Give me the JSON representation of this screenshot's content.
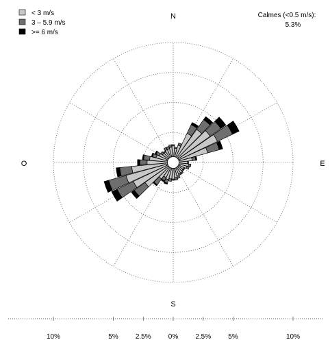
{
  "chart_data": {
    "type": "windrose",
    "direction_labels": {
      "N": "N",
      "E": "E",
      "S": "S",
      "W": "O"
    },
    "legend": [
      {
        "label": "< 3 m/s",
        "color": "#c8c8c8"
      },
      {
        "label": "3 – 5.9 m/s",
        "color": "#6e6e6e"
      },
      {
        "label": ">= 6 m/s",
        "color": "#000000"
      }
    ],
    "calm": {
      "label": "Calmes (<0.5 m/s):",
      "value": "5.3%"
    },
    "circle_percents": [
      2.5,
      5,
      7.5,
      10
    ],
    "scale_ticks": [
      {
        "label": "10%",
        "value": -10
      },
      {
        "label": "5%",
        "value": -5
      },
      {
        "label": "2.5%",
        "value": -2.5
      },
      {
        "label": "0%",
        "value": 0
      },
      {
        "label": "2.5%",
        "value": 2.5
      },
      {
        "label": "5%",
        "value": 5
      },
      {
        "label": "10%",
        "value": 10
      }
    ],
    "sectors": [
      {
        "dir": 0,
        "values": [
          0.9,
          0.1,
          0
        ]
      },
      {
        "dir": 10,
        "values": [
          0.7,
          0.1,
          0
        ]
      },
      {
        "dir": 20,
        "values": [
          1.0,
          0.2,
          0
        ]
      },
      {
        "dir": 30,
        "values": [
          2.2,
          0.8,
          0.2
        ]
      },
      {
        "dir": 40,
        "values": [
          2.9,
          1.0,
          0.3
        ]
      },
      {
        "dir": 50,
        "values": [
          3.3,
          1.1,
          0.5
        ]
      },
      {
        "dir": 60,
        "values": [
          3.6,
          1.4,
          0.6
        ]
      },
      {
        "dir": 70,
        "values": [
          2.5,
          1.0,
          0.3
        ]
      },
      {
        "dir": 80,
        "values": [
          1.1,
          0.3,
          0.1
        ]
      },
      {
        "dir": 90,
        "values": [
          0.7,
          0.1,
          0
        ]
      },
      {
        "dir": 100,
        "values": [
          0.8,
          0.2,
          0
        ]
      },
      {
        "dir": 110,
        "values": [
          0.7,
          0.2,
          0
        ]
      },
      {
        "dir": 120,
        "values": [
          0.5,
          0.1,
          0
        ]
      },
      {
        "dir": 130,
        "values": [
          0.5,
          0.1,
          0
        ]
      },
      {
        "dir": 140,
        "values": [
          0.6,
          0.1,
          0
        ]
      },
      {
        "dir": 150,
        "values": [
          0.6,
          0.1,
          0
        ]
      },
      {
        "dir": 160,
        "values": [
          0.7,
          0.2,
          0
        ]
      },
      {
        "dir": 170,
        "values": [
          0.8,
          0.2,
          0
        ]
      },
      {
        "dir": 180,
        "values": [
          0.9,
          0.1,
          0
        ]
      },
      {
        "dir": 190,
        "values": [
          0.9,
          0.2,
          0
        ]
      },
      {
        "dir": 200,
        "values": [
          1.0,
          0.3,
          0.1
        ]
      },
      {
        "dir": 210,
        "values": [
          0.9,
          0.3,
          0.1
        ]
      },
      {
        "dir": 220,
        "values": [
          1.2,
          0.6,
          0.1
        ]
      },
      {
        "dir": 230,
        "values": [
          2.4,
          1.1,
          0.3
        ]
      },
      {
        "dir": 240,
        "values": [
          3.2,
          1.5,
          0.5
        ]
      },
      {
        "dir": 250,
        "values": [
          3.6,
          1.5,
          0.4
        ]
      },
      {
        "dir": 260,
        "values": [
          3.0,
          1.0,
          0.3
        ]
      },
      {
        "dir": 270,
        "values": [
          1.7,
          0.6,
          0.2
        ]
      },
      {
        "dir": 280,
        "values": [
          1.5,
          0.5,
          0.1
        ]
      },
      {
        "dir": 290,
        "values": [
          1.0,
          0.3,
          0.1
        ]
      },
      {
        "dir": 300,
        "values": [
          0.8,
          0.3,
          0.1
        ]
      },
      {
        "dir": 310,
        "values": [
          0.6,
          0.2,
          0
        ]
      },
      {
        "dir": 320,
        "values": [
          0.6,
          0.1,
          0
        ]
      },
      {
        "dir": 330,
        "values": [
          0.7,
          0.2,
          0
        ]
      },
      {
        "dir": 340,
        "values": [
          0.7,
          0.2,
          0
        ]
      },
      {
        "dir": 350,
        "values": [
          0.8,
          0.2,
          0
        ]
      }
    ]
  }
}
